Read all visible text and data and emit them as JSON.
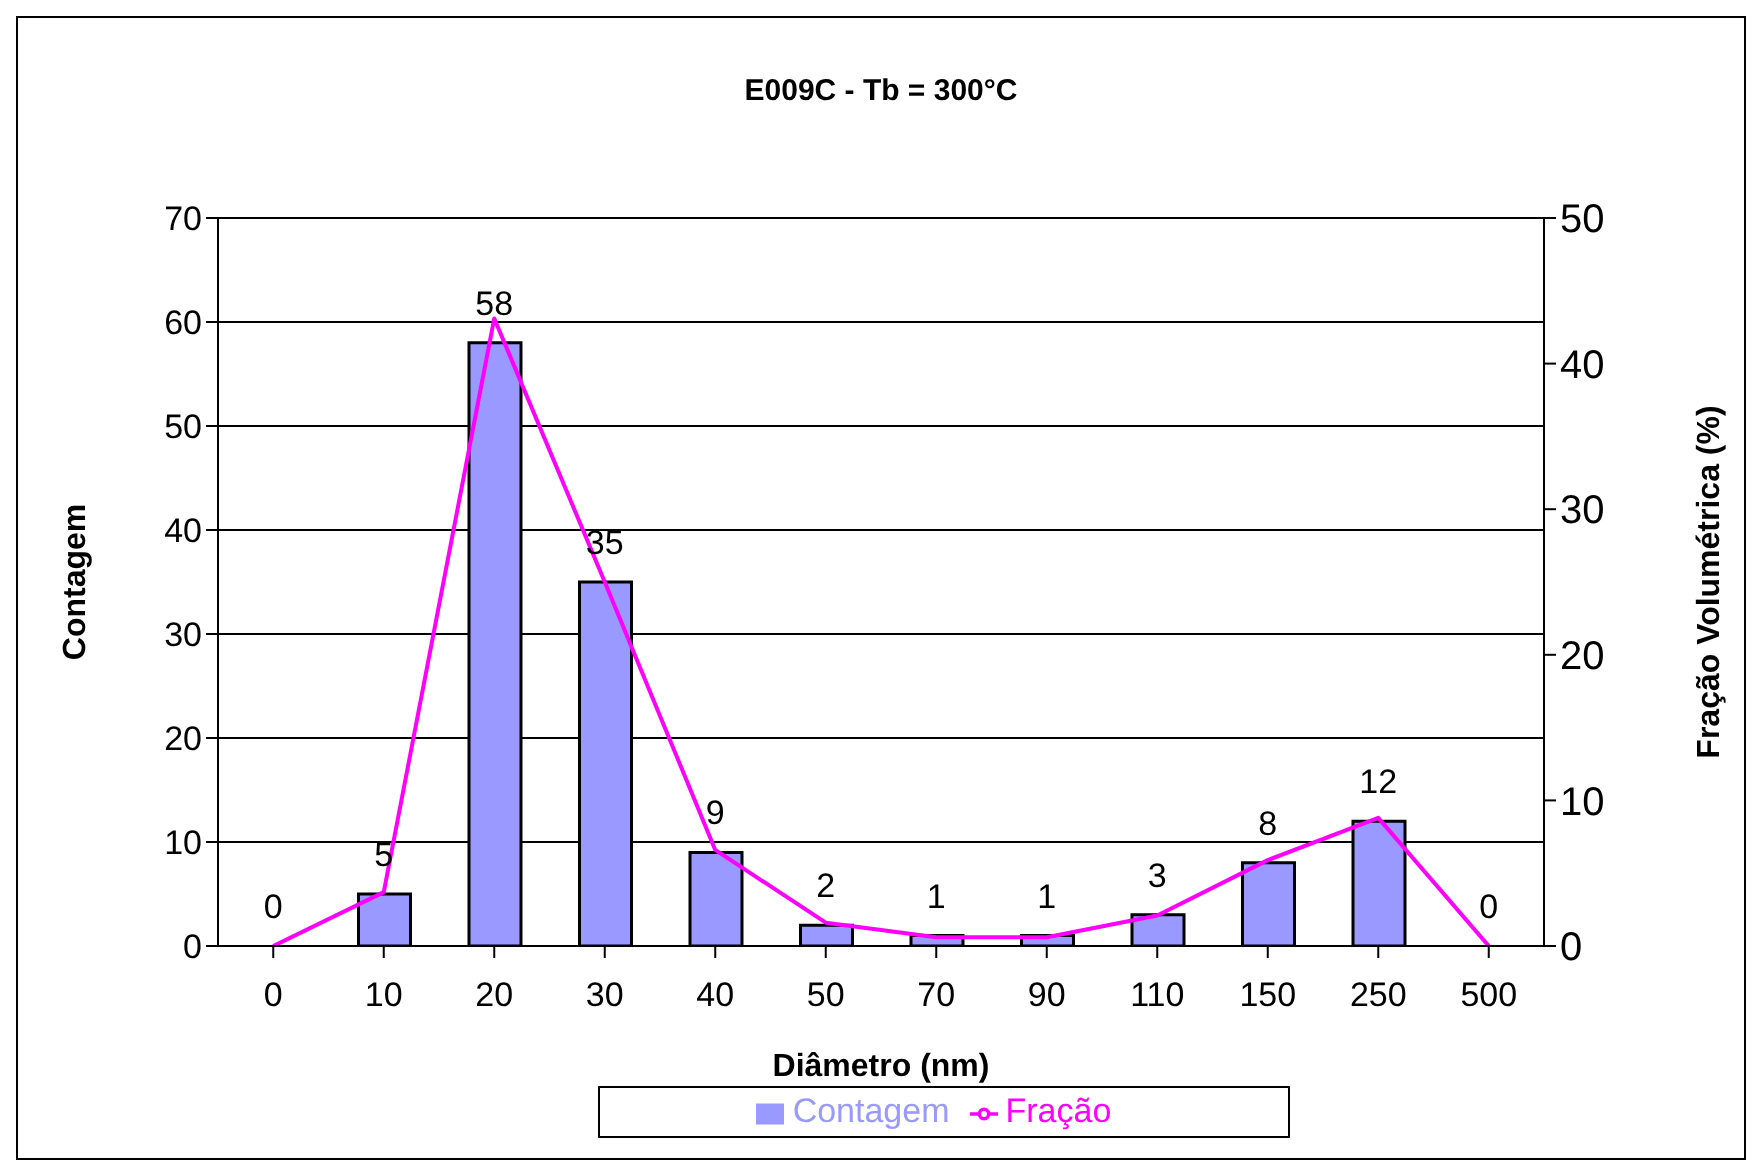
{
  "chart_data": {
    "type": "bar",
    "title": "E009C - Tb = 300°C",
    "xlabel": "Diâmetro (nm)",
    "ylabel": "Contagem",
    "y2label": "Fração Volumétrica (%)",
    "categories": [
      "0",
      "10",
      "20",
      "30",
      "40",
      "50",
      "70",
      "90",
      "110",
      "150",
      "250",
      "500"
    ],
    "series": [
      {
        "name": "Contagem",
        "color": "#9999ff",
        "values": [
          0,
          5,
          58,
          35,
          9,
          2,
          1,
          1,
          3,
          8,
          12,
          0
        ],
        "value_labels": [
          "0",
          "5",
          "58",
          "35",
          "9",
          "2",
          "1",
          "1",
          "3",
          "8",
          "12",
          "0"
        ]
      },
      {
        "name": "Fração",
        "type": "line",
        "axis": "y2",
        "color": "#ff00ff",
        "values": [
          0,
          3.7,
          43.1,
          25,
          6.6,
          1.6,
          0.6,
          0.6,
          2.1,
          5.9,
          8.8,
          0
        ]
      }
    ],
    "ylim": [
      0,
      70
    ],
    "yticks": [
      0,
      10,
      20,
      30,
      40,
      50,
      60,
      70
    ],
    "y2lim": [
      0,
      50
    ],
    "y2ticks": [
      0,
      10,
      20,
      30,
      40,
      50
    ],
    "grid": "y",
    "legend": "bottom",
    "marker": "none"
  }
}
